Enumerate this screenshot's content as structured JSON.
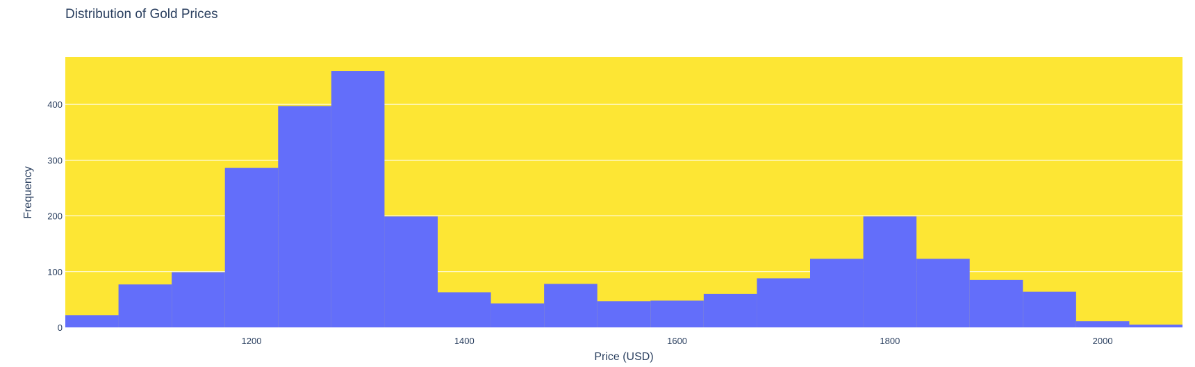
{
  "chart_data": {
    "type": "bar",
    "title": "Distribution of Gold Prices",
    "xlabel": "Price (USD)",
    "ylabel": "Frequency",
    "bin_width": 50,
    "x_range": [
      1025,
      2075
    ],
    "ylim": [
      0,
      485
    ],
    "x_ticks": [
      1200,
      1400,
      1600,
      1800,
      2000
    ],
    "y_ticks": [
      0,
      100,
      200,
      300,
      400
    ],
    "bins_start": [
      1025,
      1075,
      1125,
      1175,
      1225,
      1275,
      1325,
      1375,
      1425,
      1475,
      1525,
      1575,
      1625,
      1675,
      1725,
      1775,
      1825,
      1875,
      1925,
      1975,
      2025
    ],
    "values": [
      22,
      77,
      99,
      286,
      397,
      460,
      199,
      63,
      43,
      78,
      47,
      48,
      60,
      88,
      123,
      199,
      123,
      85,
      64,
      11,
      5
    ],
    "grid": true,
    "colors": {
      "plot_background": "#fde634",
      "bar": "#636efa",
      "grid": "#ffffff",
      "text": "#2a3f5f"
    }
  }
}
